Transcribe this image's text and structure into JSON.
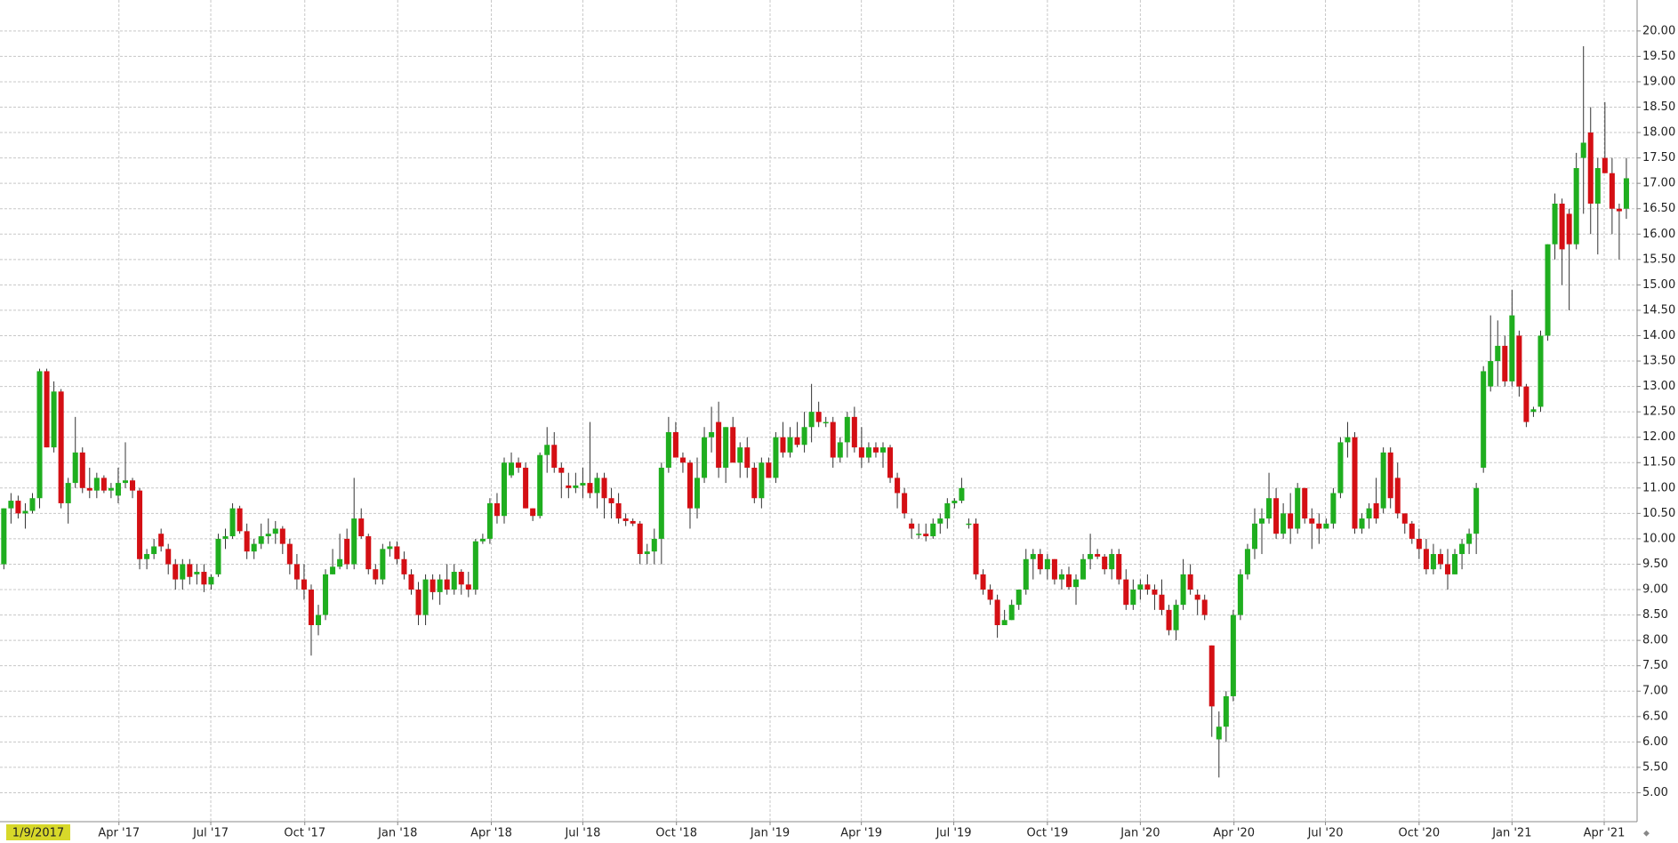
{
  "chart_data": {
    "type": "candlestick",
    "crosshair_label": "1/9/2017",
    "up_color": "#1fae1f",
    "down_color": "#d40f14",
    "wick_color": "#333333",
    "grid": true,
    "xlim": [
      -0.54,
      228.5
    ],
    "xticks": [
      {
        "value": 16.1,
        "label": "Apr '17"
      },
      {
        "value": 28.95,
        "label": "Jul '17"
      },
      {
        "value": 42.1,
        "label": "Oct '17"
      },
      {
        "value": 55.1,
        "label": "Jan '18"
      },
      {
        "value": 68.2,
        "label": "Apr '18"
      },
      {
        "value": 81.0,
        "label": "Jul '18"
      },
      {
        "value": 94.1,
        "label": "Oct '18"
      },
      {
        "value": 107.2,
        "label": "Jan '19"
      },
      {
        "value": 119.97,
        "label": "Apr '19"
      },
      {
        "value": 132.9,
        "label": "Jul '19"
      },
      {
        "value": 146.0,
        "label": "Oct '19"
      },
      {
        "value": 159.0,
        "label": "Jan '20"
      },
      {
        "value": 172.1,
        "label": "Apr '20"
      },
      {
        "value": 184.9,
        "label": "Jul '20"
      },
      {
        "value": 198.0,
        "label": "Oct '20"
      },
      {
        "value": 211.0,
        "label": "Jan '21"
      },
      {
        "value": 223.9,
        "label": "Apr '21"
      }
    ],
    "ylim": [
      4.43,
      20.61
    ],
    "yticks": [
      {
        "value": 5,
        "label": "5.00"
      },
      {
        "value": 5.5,
        "label": "5.50"
      },
      {
        "value": 6,
        "label": "6.00"
      },
      {
        "value": 6.5,
        "label": "6.50"
      },
      {
        "value": 7,
        "label": "7.00"
      },
      {
        "value": 7.5,
        "label": "7.50"
      },
      {
        "value": 8,
        "label": "8.00"
      },
      {
        "value": 8.5,
        "label": "8.50"
      },
      {
        "value": 9,
        "label": "9.00"
      },
      {
        "value": 9.5,
        "label": "9.50"
      },
      {
        "value": 10,
        "label": "10.00"
      },
      {
        "value": 10.5,
        "label": "10.50"
      },
      {
        "value": 11,
        "label": "11.00"
      },
      {
        "value": 11.5,
        "label": "11.50"
      },
      {
        "value": 12,
        "label": "12.00"
      },
      {
        "value": 12.5,
        "label": "12.50"
      },
      {
        "value": 13,
        "label": "13.00"
      },
      {
        "value": 13.5,
        "label": "13.50"
      },
      {
        "value": 14,
        "label": "14.00"
      },
      {
        "value": 14.5,
        "label": "14.50"
      },
      {
        "value": 15,
        "label": "15.00"
      },
      {
        "value": 15.5,
        "label": "15.50"
      },
      {
        "value": 16,
        "label": "16.00"
      },
      {
        "value": 16.5,
        "label": "16.50"
      },
      {
        "value": 17,
        "label": "17.00"
      },
      {
        "value": 17.5,
        "label": "17.50"
      },
      {
        "value": 18,
        "label": "18.00"
      },
      {
        "value": 18.5,
        "label": "18.50"
      },
      {
        "value": 19,
        "label": "19.00"
      },
      {
        "value": 19.5,
        "label": "19.50"
      },
      {
        "value": 20,
        "label": "20.00"
      }
    ],
    "ohlc": [
      [
        9.5,
        10.6,
        9.4,
        10.6
      ],
      [
        10.6,
        10.9,
        10.3,
        10.75
      ],
      [
        10.75,
        10.85,
        10.4,
        10.5
      ],
      [
        10.5,
        10.7,
        10.2,
        10.55
      ],
      [
        10.55,
        10.9,
        10.5,
        10.8
      ],
      [
        10.8,
        13.35,
        10.6,
        13.3
      ],
      [
        13.3,
        13.35,
        11.8,
        11.8
      ],
      [
        11.8,
        13.1,
        11.7,
        12.9
      ],
      [
        12.9,
        12.95,
        10.6,
        10.7
      ],
      [
        10.7,
        11.2,
        10.3,
        11.1
      ],
      [
        11.1,
        12.4,
        11.0,
        11.7
      ],
      [
        11.7,
        11.8,
        10.9,
        11.0
      ],
      [
        11.0,
        11.4,
        10.8,
        10.95
      ],
      [
        10.95,
        11.3,
        10.8,
        11.2
      ],
      [
        11.2,
        11.25,
        10.9,
        10.95
      ],
      [
        10.95,
        11.1,
        10.8,
        11.0
      ],
      [
        10.85,
        11.4,
        10.7,
        11.1
      ],
      [
        11.1,
        11.9,
        11.0,
        11.15
      ],
      [
        11.15,
        11.2,
        10.8,
        10.95
      ],
      [
        10.95,
        11.0,
        9.4,
        9.6
      ],
      [
        9.6,
        9.8,
        9.4,
        9.7
      ],
      [
        9.7,
        10.0,
        9.6,
        9.85
      ],
      [
        10.1,
        10.2,
        9.75,
        9.85
      ],
      [
        9.8,
        9.9,
        9.3,
        9.5
      ],
      [
        9.5,
        9.6,
        9.0,
        9.2
      ],
      [
        9.2,
        9.6,
        9.0,
        9.5
      ],
      [
        9.5,
        9.6,
        9.1,
        9.25
      ],
      [
        9.3,
        9.5,
        9.1,
        9.35
      ],
      [
        9.35,
        9.5,
        8.95,
        9.1
      ],
      [
        9.1,
        9.3,
        9.0,
        9.25
      ],
      [
        9.3,
        10.1,
        9.25,
        10.0
      ],
      [
        10.0,
        10.2,
        9.8,
        10.05
      ],
      [
        10.05,
        10.7,
        10.0,
        10.6
      ],
      [
        10.6,
        10.65,
        10.1,
        10.15
      ],
      [
        10.15,
        10.3,
        9.6,
        9.75
      ],
      [
        9.75,
        10.0,
        9.6,
        9.9
      ],
      [
        9.9,
        10.3,
        9.8,
        10.05
      ],
      [
        10.05,
        10.4,
        9.9,
        10.1
      ],
      [
        10.1,
        10.35,
        9.9,
        10.2
      ],
      [
        10.2,
        10.25,
        9.7,
        9.9
      ],
      [
        9.9,
        10.0,
        9.3,
        9.5
      ],
      [
        9.5,
        9.7,
        9.0,
        9.2
      ],
      [
        9.2,
        9.5,
        8.8,
        9.0
      ],
      [
        9.0,
        9.1,
        7.7,
        8.3
      ],
      [
        8.3,
        8.7,
        8.1,
        8.5
      ],
      [
        8.5,
        9.4,
        8.4,
        9.3
      ],
      [
        9.3,
        9.8,
        9.3,
        9.45
      ],
      [
        9.45,
        10.1,
        9.4,
        9.6
      ],
      [
        10.0,
        10.2,
        9.4,
        9.5
      ],
      [
        9.5,
        11.2,
        9.4,
        10.4
      ],
      [
        10.4,
        10.6,
        10.0,
        10.05
      ],
      [
        10.05,
        10.1,
        9.3,
        9.4
      ],
      [
        9.4,
        9.5,
        9.1,
        9.2
      ],
      [
        9.2,
        9.9,
        9.1,
        9.8
      ],
      [
        9.8,
        9.95,
        9.65,
        9.85
      ],
      [
        9.85,
        9.95,
        9.5,
        9.6
      ],
      [
        9.6,
        9.75,
        9.2,
        9.3
      ],
      [
        9.3,
        9.4,
        8.9,
        9.0
      ],
      [
        9.0,
        9.15,
        8.3,
        8.5
      ],
      [
        8.5,
        9.3,
        8.3,
        9.2
      ],
      [
        9.2,
        9.3,
        8.8,
        8.95
      ],
      [
        8.95,
        9.3,
        8.7,
        9.2
      ],
      [
        9.2,
        9.5,
        8.9,
        9.0
      ],
      [
        9.0,
        9.5,
        8.9,
        9.35
      ],
      [
        9.35,
        9.4,
        8.9,
        9.1
      ],
      [
        9.1,
        9.35,
        8.85,
        9.0
      ],
      [
        9.0,
        10.0,
        8.9,
        9.95
      ],
      [
        9.95,
        10.1,
        9.9,
        10.0
      ],
      [
        10.0,
        10.8,
        9.9,
        10.7
      ],
      [
        10.7,
        10.9,
        10.3,
        10.45
      ],
      [
        10.45,
        11.6,
        10.3,
        11.5
      ],
      [
        11.25,
        11.7,
        11.2,
        11.5
      ],
      [
        11.5,
        11.6,
        11.3,
        11.4
      ],
      [
        11.4,
        11.5,
        10.6,
        10.6
      ],
      [
        10.6,
        10.6,
        10.35,
        10.45
      ],
      [
        10.45,
        11.7,
        10.4,
        11.65
      ],
      [
        11.65,
        12.2,
        11.3,
        11.85
      ],
      [
        11.85,
        12.1,
        11.3,
        11.4
      ],
      [
        11.4,
        11.5,
        10.8,
        11.3
      ],
      [
        11.05,
        11.3,
        10.8,
        11.0
      ],
      [
        11.0,
        11.3,
        10.9,
        11.05
      ],
      [
        11.05,
        11.4,
        10.8,
        11.1
      ],
      [
        11.1,
        12.3,
        10.8,
        10.9
      ],
      [
        10.9,
        11.3,
        10.6,
        11.2
      ],
      [
        11.2,
        11.3,
        10.4,
        10.8
      ],
      [
        10.8,
        11.0,
        10.4,
        10.7
      ],
      [
        10.7,
        10.9,
        10.3,
        10.4
      ],
      [
        10.4,
        10.5,
        10.25,
        10.35
      ],
      [
        10.35,
        10.4,
        10.25,
        10.3
      ],
      [
        10.3,
        10.35,
        9.5,
        9.7
      ],
      [
        9.7,
        9.9,
        9.5,
        9.75
      ],
      [
        9.75,
        10.2,
        9.5,
        10.0
      ],
      [
        10.0,
        11.5,
        9.5,
        11.4
      ],
      [
        11.4,
        12.4,
        11.3,
        12.1
      ],
      [
        12.1,
        12.3,
        11.6,
        11.6
      ],
      [
        11.6,
        11.7,
        11.3,
        11.5
      ],
      [
        11.5,
        11.55,
        10.2,
        10.6
      ],
      [
        10.6,
        11.6,
        10.4,
        11.2
      ],
      [
        11.2,
        12.2,
        11.1,
        12.0
      ],
      [
        12.0,
        12.6,
        11.7,
        12.1
      ],
      [
        12.3,
        12.7,
        11.2,
        11.4
      ],
      [
        11.4,
        12.2,
        11.1,
        12.2
      ],
      [
        12.2,
        12.4,
        11.5,
        11.5
      ],
      [
        11.5,
        11.9,
        11.2,
        11.8
      ],
      [
        11.8,
        12.0,
        11.2,
        11.4
      ],
      [
        11.4,
        11.5,
        10.7,
        10.8
      ],
      [
        10.8,
        11.6,
        10.6,
        11.5
      ],
      [
        11.5,
        11.6,
        11.2,
        11.2
      ],
      [
        11.2,
        12.1,
        11.1,
        12.0
      ],
      [
        12.0,
        12.3,
        11.6,
        11.7
      ],
      [
        11.7,
        12.2,
        11.6,
        12.0
      ],
      [
        12.0,
        12.3,
        11.8,
        11.85
      ],
      [
        11.85,
        12.5,
        11.7,
        12.2
      ],
      [
        12.2,
        13.05,
        11.9,
        12.5
      ],
      [
        12.5,
        12.7,
        12.2,
        12.3
      ],
      [
        12.3,
        12.4,
        12.2,
        12.3
      ],
      [
        12.3,
        12.4,
        11.4,
        11.6
      ],
      [
        11.6,
        12.0,
        11.5,
        11.9
      ],
      [
        11.9,
        12.5,
        11.6,
        12.4
      ],
      [
        12.4,
        12.6,
        11.7,
        11.8
      ],
      [
        11.8,
        12.2,
        11.4,
        11.6
      ],
      [
        11.6,
        11.9,
        11.5,
        11.8
      ],
      [
        11.8,
        11.9,
        11.6,
        11.7
      ],
      [
        11.7,
        11.9,
        11.4,
        11.8
      ],
      [
        11.8,
        11.85,
        11.1,
        11.2
      ],
      [
        11.2,
        11.3,
        10.6,
        10.9
      ],
      [
        10.9,
        11.0,
        10.4,
        10.5
      ],
      [
        10.3,
        10.4,
        10.0,
        10.2
      ],
      [
        10.1,
        10.3,
        10.0,
        10.1
      ],
      [
        10.1,
        10.3,
        9.95,
        10.05
      ],
      [
        10.05,
        10.4,
        10.0,
        10.3
      ],
      [
        10.3,
        10.5,
        10.1,
        10.4
      ],
      [
        10.4,
        10.8,
        10.2,
        10.7
      ],
      [
        10.7,
        10.8,
        10.6,
        10.75
      ],
      [
        10.75,
        11.2,
        10.7,
        11.0
      ],
      [
        10.3,
        10.4,
        10.2,
        10.3
      ],
      [
        10.3,
        10.4,
        9.2,
        9.3
      ],
      [
        9.3,
        9.4,
        8.9,
        9.0
      ],
      [
        9.0,
        9.1,
        8.7,
        8.8
      ],
      [
        8.8,
        8.9,
        8.05,
        8.3
      ],
      [
        8.3,
        8.6,
        8.3,
        8.4
      ],
      [
        8.4,
        8.8,
        8.4,
        8.7
      ],
      [
        8.7,
        9.0,
        8.6,
        9.0
      ],
      [
        9.0,
        9.8,
        8.9,
        9.6
      ],
      [
        9.6,
        9.8,
        9.2,
        9.7
      ],
      [
        9.7,
        9.8,
        9.3,
        9.4
      ],
      [
        9.4,
        9.7,
        9.2,
        9.6
      ],
      [
        9.6,
        9.6,
        9.1,
        9.2
      ],
      [
        9.2,
        9.4,
        9.0,
        9.3
      ],
      [
        9.3,
        9.45,
        9.0,
        9.05
      ],
      [
        9.05,
        9.3,
        8.7,
        9.2
      ],
      [
        9.2,
        9.7,
        9.2,
        9.6
      ],
      [
        9.6,
        10.1,
        9.4,
        9.7
      ],
      [
        9.7,
        9.8,
        9.6,
        9.65
      ],
      [
        9.65,
        9.7,
        9.3,
        9.4
      ],
      [
        9.4,
        9.8,
        9.2,
        9.7
      ],
      [
        9.7,
        9.8,
        9.1,
        9.2
      ],
      [
        9.2,
        9.4,
        8.6,
        8.7
      ],
      [
        8.7,
        9.2,
        8.6,
        9.0
      ],
      [
        9.0,
        9.2,
        8.8,
        9.1
      ],
      [
        9.1,
        9.3,
        8.9,
        9.0
      ],
      [
        9.0,
        9.1,
        8.6,
        8.9
      ],
      [
        8.9,
        9.2,
        8.5,
        8.6
      ],
      [
        8.6,
        8.7,
        8.1,
        8.2
      ],
      [
        8.2,
        8.8,
        8.0,
        8.7
      ],
      [
        8.7,
        9.6,
        8.6,
        9.3
      ],
      [
        9.3,
        9.5,
        8.9,
        9.0
      ],
      [
        8.9,
        9.0,
        8.5,
        8.8
      ],
      [
        8.8,
        8.9,
        8.4,
        8.5
      ],
      [
        7.9,
        7.9,
        6.1,
        6.7
      ],
      [
        6.05,
        6.6,
        5.3,
        6.3
      ],
      [
        6.3,
        7.0,
        6.0,
        6.9
      ],
      [
        6.9,
        8.6,
        6.8,
        8.5
      ],
      [
        8.5,
        9.4,
        8.4,
        9.3
      ],
      [
        9.3,
        9.9,
        9.2,
        9.8
      ],
      [
        9.8,
        10.6,
        9.6,
        10.3
      ],
      [
        10.3,
        10.6,
        9.7,
        10.4
      ],
      [
        10.4,
        11.3,
        10.3,
        10.8
      ],
      [
        10.8,
        11.0,
        10.0,
        10.1
      ],
      [
        10.1,
        10.7,
        10.0,
        10.5
      ],
      [
        10.5,
        10.9,
        9.9,
        10.2
      ],
      [
        10.2,
        11.1,
        10.1,
        11.0
      ],
      [
        11.0,
        11.0,
        10.3,
        10.4
      ],
      [
        10.4,
        10.6,
        9.8,
        10.3
      ],
      [
        10.3,
        10.5,
        9.9,
        10.2
      ],
      [
        10.2,
        10.4,
        10.2,
        10.3
      ],
      [
        10.3,
        11.0,
        10.2,
        10.9
      ],
      [
        10.9,
        12.0,
        10.8,
        11.9
      ],
      [
        11.9,
        12.3,
        11.6,
        12.0
      ],
      [
        12.0,
        12.1,
        10.1,
        10.2
      ],
      [
        10.2,
        10.5,
        10.1,
        10.4
      ],
      [
        10.4,
        10.7,
        10.2,
        10.6
      ],
      [
        10.7,
        11.2,
        10.3,
        10.4
      ],
      [
        10.6,
        11.8,
        10.5,
        11.7
      ],
      [
        11.7,
        11.8,
        10.6,
        10.8
      ],
      [
        11.2,
        11.5,
        10.4,
        10.5
      ],
      [
        10.5,
        10.5,
        10.1,
        10.3
      ],
      [
        10.3,
        10.35,
        9.9,
        10.0
      ],
      [
        10.0,
        10.2,
        9.6,
        9.8
      ],
      [
        9.8,
        10.0,
        9.3,
        9.4
      ],
      [
        9.4,
        9.9,
        9.3,
        9.7
      ],
      [
        9.7,
        9.8,
        9.4,
        9.5
      ],
      [
        9.5,
        9.8,
        9.0,
        9.3
      ],
      [
        9.3,
        9.8,
        9.3,
        9.7
      ],
      [
        9.7,
        10.0,
        9.4,
        9.9
      ],
      [
        9.9,
        10.2,
        9.7,
        10.1
      ],
      [
        10.1,
        11.1,
        9.7,
        11.0
      ],
      [
        11.4,
        13.4,
        11.3,
        13.3
      ],
      [
        13.0,
        14.4,
        12.9,
        13.5
      ],
      [
        13.5,
        14.3,
        13.0,
        13.8
      ],
      [
        13.8,
        14.0,
        13.0,
        13.1
      ],
      [
        13.1,
        14.9,
        13.0,
        14.4
      ],
      [
        14.0,
        14.1,
        12.8,
        13.0
      ],
      [
        13.0,
        13.05,
        12.2,
        12.3
      ],
      [
        12.5,
        12.6,
        12.4,
        12.55
      ],
      [
        12.6,
        14.1,
        12.5,
        14.0
      ],
      [
        14.0,
        15.8,
        13.9,
        15.8
      ],
      [
        15.8,
        16.8,
        15.5,
        16.6
      ],
      [
        16.6,
        16.7,
        15.0,
        15.7
      ],
      [
        16.4,
        16.5,
        14.5,
        15.8
      ],
      [
        15.8,
        17.6,
        15.7,
        17.3
      ],
      [
        17.5,
        19.7,
        16.4,
        17.8
      ],
      [
        18.0,
        18.5,
        16.0,
        16.6
      ],
      [
        16.6,
        17.5,
        15.6,
        17.3
      ],
      [
        17.5,
        18.6,
        17.2,
        17.2
      ],
      [
        17.2,
        17.5,
        16.0,
        16.5
      ],
      [
        16.5,
        16.6,
        15.5,
        16.45
      ],
      [
        16.5,
        17.5,
        16.3,
        17.1
      ]
    ]
  }
}
